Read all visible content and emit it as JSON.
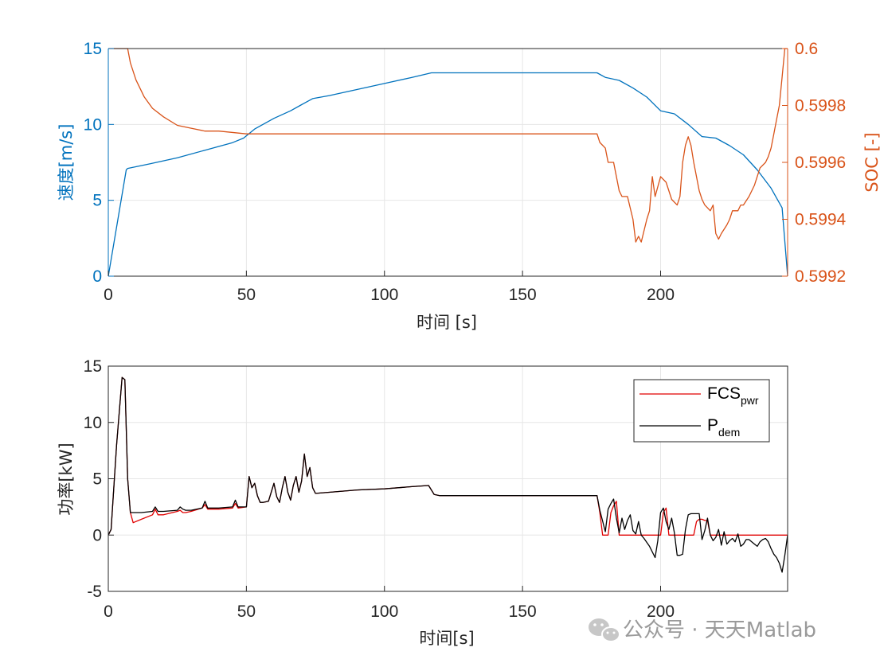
{
  "colors": {
    "speed": "#0072BD",
    "soc": "#D95319",
    "fcs": "#E00000",
    "pdem": "#000000",
    "grid": "#e6e6e6",
    "axis": "#262626",
    "watermark": "#9a9a9a"
  },
  "watermark": {
    "text": "公众号 · 天天Matlab",
    "icon": "wechat-icon"
  },
  "chart_data": [
    {
      "type": "line",
      "xlabel": "时间 [s]",
      "ylabel_left": "速度[m/s]",
      "ylabel_right": "SOC [-]",
      "xlim": [
        0,
        246
      ],
      "ylim_left": [
        0,
        15
      ],
      "ylim_right": [
        0.5992,
        0.6
      ],
      "xticks": [
        0,
        50,
        100,
        150,
        200
      ],
      "yticks_left": [
        0,
        5,
        10,
        15
      ],
      "yticks_right": [
        0.5992,
        0.5994,
        0.5996,
        0.5998,
        0.6
      ],
      "ytick_labels_right": [
        "0.5992",
        "0.5994",
        "0.5996",
        "0.5998",
        "0.6"
      ],
      "grid": true,
      "series": [
        {
          "axis": "left",
          "x": [
            0,
            6.5,
            7,
            15,
            25,
            35,
            45,
            49,
            53,
            60,
            66,
            70,
            74,
            80,
            90,
            100,
            110,
            117,
            130,
            150,
            170,
            177,
            180,
            185,
            190,
            195,
            200,
            205,
            210,
            215,
            220,
            225,
            230,
            235,
            240,
            244,
            246
          ],
          "values": [
            0,
            7.0,
            7.1,
            7.4,
            7.8,
            8.3,
            8.8,
            9.1,
            9.7,
            10.4,
            10.9,
            11.3,
            11.7,
            11.9,
            12.3,
            12.7,
            13.1,
            13.4,
            13.4,
            13.4,
            13.4,
            13.4,
            13.1,
            12.9,
            12.4,
            11.8,
            10.9,
            10.7,
            10.0,
            9.2,
            9.1,
            8.6,
            8.0,
            7.0,
            5.8,
            4.5,
            0
          ]
        },
        {
          "axis": "right",
          "x": [
            0,
            7,
            8,
            10,
            13,
            16,
            20,
            25,
            30,
            35,
            40,
            50,
            60,
            100,
            150,
            177,
            178,
            180,
            181,
            183,
            184,
            185,
            186,
            188,
            190,
            191,
            192,
            193,
            195,
            196,
            197,
            198,
            200,
            202,
            204,
            206,
            207,
            208,
            209,
            210,
            211,
            212,
            214,
            215,
            216,
            218,
            219,
            220,
            221,
            222,
            224,
            225,
            226,
            228,
            229,
            230,
            232,
            234,
            236,
            238,
            239,
            240,
            241,
            242,
            243,
            244,
            245,
            246
          ],
          "values": [
            0.6,
            0.6,
            0.59995,
            0.59989,
            0.59983,
            0.59979,
            0.59976,
            0.59973,
            0.59972,
            0.59971,
            0.59971,
            0.5997,
            0.5997,
            0.5997,
            0.5997,
            0.5997,
            0.59967,
            0.59965,
            0.5996,
            0.5996,
            0.59955,
            0.5995,
            0.59948,
            0.59948,
            0.5994,
            0.59932,
            0.59934,
            0.59932,
            0.5994,
            0.59943,
            0.59955,
            0.59948,
            0.59955,
            0.59953,
            0.59947,
            0.59945,
            0.59948,
            0.5996,
            0.59966,
            0.59969,
            0.59966,
            0.5996,
            0.5995,
            0.59947,
            0.59945,
            0.59943,
            0.59945,
            0.59935,
            0.59933,
            0.59935,
            0.59938,
            0.5994,
            0.59943,
            0.59943,
            0.59945,
            0.59945,
            0.59948,
            0.59952,
            0.59958,
            0.5996,
            0.59962,
            0.59965,
            0.5997,
            0.59975,
            0.5998,
            0.5999,
            0.6,
            0.6
          ]
        }
      ]
    },
    {
      "type": "line",
      "xlabel": "时间[s]",
      "ylabel": "功率[kW]",
      "xlim": [
        0,
        246
      ],
      "ylim": [
        -5,
        15
      ],
      "xticks": [
        0,
        50,
        100,
        150,
        200
      ],
      "yticks": [
        -5,
        0,
        5,
        10,
        15
      ],
      "grid": true,
      "legend": {
        "location": "top-right",
        "entries": [
          {
            "main": "FCS",
            "sub": "pwr"
          },
          {
            "main": "P",
            "sub": "dem"
          }
        ]
      },
      "series": [
        {
          "name": "FCS_pwr",
          "x": [
            0,
            1,
            3,
            5,
            6,
            7,
            8,
            9,
            12,
            16,
            17,
            18,
            20,
            25,
            26,
            27,
            28,
            30,
            34,
            35,
            36,
            40,
            45,
            46,
            47,
            50,
            51,
            52,
            53,
            54,
            55,
            56,
            58,
            60,
            61,
            62,
            63,
            64,
            65,
            66,
            67,
            68,
            69,
            70,
            71,
            72,
            73,
            74,
            75,
            80,
            90,
            100,
            110,
            116,
            118,
            120,
            130,
            150,
            170,
            177,
            178,
            179,
            181,
            182,
            183,
            184,
            185,
            186,
            188,
            200,
            201,
            202,
            203,
            204,
            205,
            212,
            213,
            214,
            215,
            216,
            217,
            218,
            246
          ],
          "values": [
            0,
            0.5,
            8,
            14,
            13.8,
            5,
            2.0,
            1.1,
            1.4,
            1.8,
            2.3,
            1.8,
            1.8,
            2.1,
            2.2,
            2.0,
            2.0,
            2.1,
            2.4,
            2.7,
            2.3,
            2.3,
            2.4,
            2.8,
            2.4,
            2.5,
            5.2,
            4.2,
            4.6,
            3.5,
            2.9,
            2.9,
            3.0,
            4.6,
            3.4,
            2.9,
            4.2,
            5.2,
            3.8,
            3.1,
            4.4,
            5.2,
            3.8,
            4.8,
            7.2,
            5.2,
            6.0,
            4.2,
            3.7,
            3.8,
            4.0,
            4.1,
            4.3,
            4.4,
            3.6,
            3.5,
            3.5,
            3.5,
            3.5,
            3.5,
            2.0,
            0,
            0,
            2.0,
            2.6,
            3.0,
            0,
            0,
            0,
            0,
            2.0,
            2.4,
            0,
            0,
            0,
            0,
            1.2,
            1.4,
            1.4,
            1.3,
            1.3,
            0,
            0
          ]
        },
        {
          "name": "P_dem",
          "x": [
            0,
            1,
            3,
            5,
            6,
            7,
            8,
            9,
            12,
            16,
            17,
            18,
            20,
            25,
            26,
            27,
            28,
            30,
            34,
            35,
            36,
            40,
            45,
            46,
            47,
            50,
            51,
            52,
            53,
            54,
            55,
            56,
            58,
            60,
            61,
            62,
            63,
            64,
            65,
            66,
            67,
            68,
            69,
            70,
            71,
            72,
            73,
            74,
            75,
            80,
            90,
            100,
            110,
            116,
            118,
            120,
            130,
            150,
            170,
            177,
            178,
            180,
            181,
            182,
            183,
            184,
            185,
            186,
            187,
            188,
            189,
            190,
            191,
            192,
            193,
            194,
            196,
            198,
            199,
            200,
            201,
            202,
            203,
            204,
            205,
            206,
            207,
            208,
            209,
            210,
            211,
            212,
            213,
            214,
            215,
            216,
            217,
            218,
            219,
            220,
            221,
            222,
            223,
            224,
            225,
            226,
            227,
            228,
            229,
            230,
            231,
            232,
            233,
            234,
            235,
            236,
            237,
            238,
            239,
            240,
            241,
            242,
            243,
            244,
            245,
            246
          ],
          "values": [
            0,
            0.5,
            8,
            14,
            13.8,
            5,
            2.0,
            2.0,
            2.0,
            2.1,
            2.5,
            2.1,
            2.1,
            2.2,
            2.5,
            2.3,
            2.2,
            2.2,
            2.4,
            3.0,
            2.4,
            2.4,
            2.5,
            3.1,
            2.5,
            2.5,
            5.2,
            4.2,
            4.6,
            3.5,
            2.9,
            2.9,
            3.0,
            4.6,
            3.4,
            2.9,
            4.2,
            5.2,
            3.8,
            3.1,
            4.4,
            5.2,
            3.8,
            4.8,
            7.2,
            5.2,
            6.0,
            4.2,
            3.7,
            3.8,
            4.0,
            4.1,
            4.3,
            4.4,
            3.6,
            3.5,
            3.5,
            3.5,
            3.5,
            3.5,
            2.2,
            0.3,
            2.3,
            2.8,
            3.2,
            1.5,
            0.2,
            1.5,
            0.5,
            1.3,
            1.8,
            0.4,
            0.1,
            1.2,
            0.0,
            -0.3,
            -1.0,
            -2.0,
            -0.5,
            2.0,
            2.4,
            1.2,
            0.5,
            1.5,
            0.2,
            -1.8,
            -1.8,
            -1.7,
            0.5,
            1.8,
            1.9,
            1.9,
            1.9,
            1.9,
            -0.4,
            0.4,
            1.5,
            0.0,
            -0.5,
            -0.2,
            0.5,
            -0.9,
            0.3,
            -0.8,
            -0.5,
            -0.3,
            -0.6,
            0.1,
            -1.0,
            -0.8,
            -0.4,
            -0.4,
            -0.6,
            -0.8,
            -1.0,
            -0.6,
            -0.4,
            -0.3,
            -0.6,
            -1.2,
            -1.7,
            -2.0,
            -2.5,
            -3.3,
            -1.8,
            0
          ]
        }
      ]
    }
  ]
}
